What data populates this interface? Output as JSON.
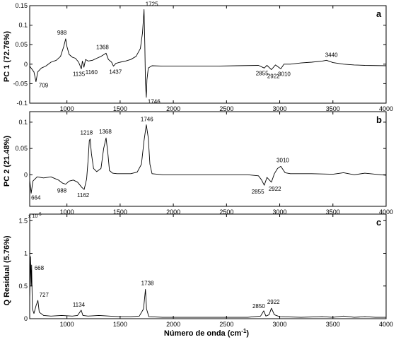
{
  "chart_data": [
    {
      "type": "line",
      "panel_label": "a",
      "ylabel": "PC 1 (72.76%)",
      "xlim": [
        650,
        4000
      ],
      "ylim": [
        -0.1,
        0.15
      ],
      "x_ticks": [
        "1000",
        "1500",
        "2000",
        "2500",
        "3000",
        "3500",
        "4000"
      ],
      "y_ticks": [
        "-0.1",
        "-0.05",
        "0",
        "0.05",
        "0.1",
        "0.15"
      ],
      "series": [
        {
          "points": [
            [
              650,
              -0.005
            ],
            [
              690,
              -0.02
            ],
            [
              709,
              -0.045
            ],
            [
              725,
              -0.02
            ],
            [
              760,
              -0.01
            ],
            [
              800,
              -0.005
            ],
            [
              850,
              0.005
            ],
            [
              900,
              0.01
            ],
            [
              940,
              0.02
            ],
            [
              970,
              0.045
            ],
            [
              988,
              0.065
            ],
            [
              1000,
              0.045
            ],
            [
              1020,
              0.025
            ],
            [
              1050,
              0.018
            ],
            [
              1080,
              0.015
            ],
            [
              1110,
              0.005
            ],
            [
              1135,
              -0.012
            ],
            [
              1145,
              0.008
            ],
            [
              1160,
              -0.008
            ],
            [
              1175,
              0.012
            ],
            [
              1200,
              0.008
            ],
            [
              1240,
              0.01
            ],
            [
              1280,
              0.015
            ],
            [
              1320,
              0.02
            ],
            [
              1350,
              0.025
            ],
            [
              1368,
              0.028
            ],
            [
              1390,
              0.012
            ],
            [
              1420,
              0.005
            ],
            [
              1437,
              -0.005
            ],
            [
              1460,
              0.002
            ],
            [
              1500,
              0.005
            ],
            [
              1550,
              0.008
            ],
            [
              1600,
              0.012
            ],
            [
              1650,
              0.02
            ],
            [
              1690,
              0.04
            ],
            [
              1710,
              0.08
            ],
            [
              1725,
              0.14
            ],
            [
              1732,
              0.05
            ],
            [
              1738,
              -0.05
            ],
            [
              1746,
              -0.085
            ],
            [
              1752,
              -0.04
            ],
            [
              1765,
              -0.01
            ],
            [
              1800,
              -0.004
            ],
            [
              1900,
              -0.005
            ],
            [
              2000,
              -0.005
            ],
            [
              2200,
              -0.005
            ],
            [
              2400,
              -0.005
            ],
            [
              2600,
              -0.004
            ],
            [
              2800,
              -0.003
            ],
            [
              2855,
              -0.01
            ],
            [
              2880,
              -0.003
            ],
            [
              2922,
              -0.014
            ],
            [
              2960,
              -0.002
            ],
            [
              3010,
              -0.012
            ],
            [
              3040,
              0.0
            ],
            [
              3100,
              0.0
            ],
            [
              3200,
              0.003
            ],
            [
              3300,
              0.005
            ],
            [
              3400,
              0.008
            ],
            [
              3440,
              0.01
            ],
            [
              3500,
              0.004
            ],
            [
              3600,
              0.0
            ],
            [
              3700,
              -0.002
            ],
            [
              3800,
              -0.003
            ],
            [
              4000,
              -0.004
            ]
          ]
        }
      ],
      "annotations": [
        {
          "label": "709",
          "x": 709,
          "y": -0.045
        },
        {
          "label": "988",
          "x": 988,
          "y": 0.065
        },
        {
          "label": "1135",
          "x": 1135,
          "y": -0.012
        },
        {
          "label": "1160",
          "x": 1160,
          "y": -0.008
        },
        {
          "label": "1368",
          "x": 1368,
          "y": 0.028
        },
        {
          "label": "1437",
          "x": 1437,
          "y": -0.005
        },
        {
          "label": "1725",
          "x": 1725,
          "y": 0.14
        },
        {
          "label": "1746",
          "x": 1746,
          "y": -0.085
        },
        {
          "label": "2855",
          "x": 2855,
          "y": -0.01
        },
        {
          "label": "2922",
          "x": 2922,
          "y": -0.014
        },
        {
          "label": "3010",
          "x": 3010,
          "y": -0.012
        },
        {
          "label": "3440",
          "x": 3440,
          "y": 0.01
        }
      ]
    },
    {
      "type": "line",
      "panel_label": "b",
      "ylabel": "PC 2 (21.48%)",
      "xlim": [
        650,
        4000
      ],
      "ylim": [
        -0.06,
        0.12
      ],
      "x_ticks": [
        "1000",
        "1500",
        "2000",
        "2500",
        "3000",
        "3500",
        "4000"
      ],
      "y_ticks": [
        "0",
        "0.05",
        "0.1"
      ],
      "series": [
        {
          "points": [
            [
              650,
              -0.01
            ],
            [
              664,
              -0.035
            ],
            [
              680,
              -0.012
            ],
            [
              720,
              -0.004
            ],
            [
              780,
              -0.006
            ],
            [
              850,
              -0.004
            ],
            [
              920,
              -0.01
            ],
            [
              960,
              -0.016
            ],
            [
              988,
              -0.018
            ],
            [
              1020,
              -0.012
            ],
            [
              1060,
              -0.01
            ],
            [
              1100,
              -0.014
            ],
            [
              1140,
              -0.024
            ],
            [
              1162,
              -0.028
            ],
            [
              1185,
              -0.008
            ],
            [
              1200,
              0.03
            ],
            [
              1210,
              0.065
            ],
            [
              1218,
              0.068
            ],
            [
              1230,
              0.04
            ],
            [
              1250,
              0.012
            ],
            [
              1280,
              0.006
            ],
            [
              1320,
              0.012
            ],
            [
              1345,
              0.05
            ],
            [
              1368,
              0.07
            ],
            [
              1385,
              0.04
            ],
            [
              1400,
              0.008
            ],
            [
              1430,
              0.003
            ],
            [
              1470,
              0.002
            ],
            [
              1520,
              0.002
            ],
            [
              1600,
              0.002
            ],
            [
              1660,
              0.005
            ],
            [
              1700,
              0.02
            ],
            [
              1725,
              0.065
            ],
            [
              1746,
              0.095
            ],
            [
              1765,
              0.07
            ],
            [
              1780,
              0.02
            ],
            [
              1800,
              0.002
            ],
            [
              1900,
              0.0
            ],
            [
              2100,
              0.0
            ],
            [
              2400,
              0.0
            ],
            [
              2700,
              0.0
            ],
            [
              2800,
              -0.002
            ],
            [
              2830,
              -0.01
            ],
            [
              2855,
              -0.02
            ],
            [
              2880,
              -0.005
            ],
            [
              2922,
              -0.014
            ],
            [
              2950,
              0.002
            ],
            [
              2980,
              0.012
            ],
            [
              3010,
              0.016
            ],
            [
              3050,
              0.004
            ],
            [
              3100,
              0.002
            ],
            [
              3300,
              0.002
            ],
            [
              3500,
              0.001
            ],
            [
              3600,
              0.004
            ],
            [
              3700,
              0.0
            ],
            [
              3800,
              0.003
            ],
            [
              3900,
              0.001
            ],
            [
              4000,
              -0.001
            ]
          ]
        }
      ],
      "annotations": [
        {
          "label": "664",
          "x": 664,
          "y": -0.035
        },
        {
          "label": "988",
          "x": 988,
          "y": -0.018
        },
        {
          "label": "1162",
          "x": 1162,
          "y": -0.028
        },
        {
          "label": "1218",
          "x": 1218,
          "y": 0.068
        },
        {
          "label": "1368",
          "x": 1368,
          "y": 0.07
        },
        {
          "label": "1746",
          "x": 1746,
          "y": 0.095
        },
        {
          "label": "2855",
          "x": 2855,
          "y": -0.02
        },
        {
          "label": "2922",
          "x": 2922,
          "y": -0.014
        },
        {
          "label": "3010",
          "x": 3010,
          "y": 0.016
        }
      ]
    },
    {
      "type": "line",
      "panel_label": "c",
      "ylabel": "Q Residual  (5.76%)",
      "xlabel": "Número de onda (cm",
      "xlabel_sup": "-1",
      "xlabel_end": ")",
      "y_exponent_base": "x 10",
      "y_exponent_power": "-5",
      "xlim": [
        650,
        4000
      ],
      "ylim": [
        0,
        1.6
      ],
      "x_ticks": [
        "1000",
        "1500",
        "2000",
        "2500",
        "3000",
        "3500",
        "4000"
      ],
      "y_ticks": [
        "0",
        "0.5",
        "1",
        "1.5"
      ],
      "series": [
        {
          "points": [
            [
              650,
              0.3
            ],
            [
              658,
              0.95
            ],
            [
              664,
              0.5
            ],
            [
              668,
              0.82
            ],
            [
              675,
              0.15
            ],
            [
              690,
              0.08
            ],
            [
              710,
              0.2
            ],
            [
              727,
              0.28
            ],
            [
              740,
              0.1
            ],
            [
              780,
              0.05
            ],
            [
              850,
              0.04
            ],
            [
              950,
              0.05
            ],
            [
              1050,
              0.04
            ],
            [
              1100,
              0.05
            ],
            [
              1134,
              0.13
            ],
            [
              1150,
              0.05
            ],
            [
              1200,
              0.04
            ],
            [
              1300,
              0.05
            ],
            [
              1400,
              0.04
            ],
            [
              1500,
              0.03
            ],
            [
              1600,
              0.03
            ],
            [
              1680,
              0.04
            ],
            [
              1720,
              0.15
            ],
            [
              1738,
              0.45
            ],
            [
              1748,
              0.15
            ],
            [
              1770,
              0.03
            ],
            [
              1900,
              0.02
            ],
            [
              2100,
              0.02
            ],
            [
              2400,
              0.02
            ],
            [
              2700,
              0.02
            ],
            [
              2820,
              0.04
            ],
            [
              2850,
              0.12
            ],
            [
              2870,
              0.04
            ],
            [
              2900,
              0.06
            ],
            [
              2922,
              0.16
            ],
            [
              2950,
              0.06
            ],
            [
              3000,
              0.03
            ],
            [
              3200,
              0.02
            ],
            [
              3400,
              0.03
            ],
            [
              3500,
              0.02
            ],
            [
              3600,
              0.04
            ],
            [
              3700,
              0.02
            ],
            [
              3800,
              0.03
            ],
            [
              3900,
              0.02
            ],
            [
              4000,
              0.02
            ]
          ]
        }
      ],
      "annotations": [
        {
          "label": "668",
          "x": 668,
          "y": 0.82
        },
        {
          "label": "727",
          "x": 727,
          "y": 0.28
        },
        {
          "label": "1134",
          "x": 1134,
          "y": 0.13
        },
        {
          "label": "1738",
          "x": 1738,
          "y": 0.45
        },
        {
          "label": "2850",
          "x": 2850,
          "y": 0.12
        },
        {
          "label": "2922",
          "x": 2922,
          "y": 0.16
        }
      ]
    }
  ]
}
